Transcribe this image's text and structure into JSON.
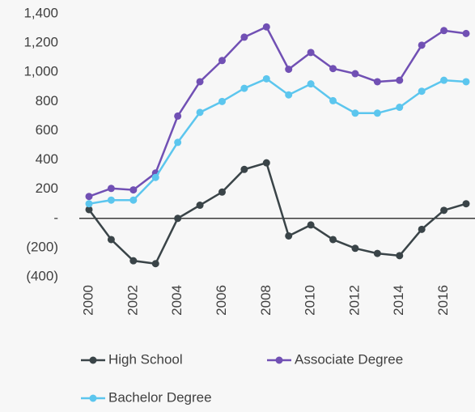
{
  "chart_data": {
    "type": "line",
    "x": [
      2000,
      2001,
      2002,
      2003,
      2004,
      2005,
      2006,
      2007,
      2008,
      2009,
      2010,
      2011,
      2012,
      2013,
      2014,
      2015,
      2016,
      2017
    ],
    "xlim": [
      2000,
      2017
    ],
    "xticks": [
      2000,
      2002,
      2004,
      2006,
      2008,
      2010,
      2012,
      2014,
      2016
    ],
    "ylim": [
      -400,
      1400
    ],
    "yticks": [
      {
        "value": 1400,
        "label": "1,400"
      },
      {
        "value": 1200,
        "label": "1,200"
      },
      {
        "value": 1000,
        "label": "1,000"
      },
      800,
      600,
      400,
      200,
      {
        "value": 0,
        "label": "-"
      },
      {
        "value": -200,
        "label": "(200)"
      },
      {
        "value": -400,
        "label": "(400)"
      }
    ],
    "grid": false,
    "legend": "bottom",
    "series": [
      {
        "name": "High School",
        "color": "#3a4448",
        "values": [
          60,
          -145,
          -290,
          -310,
          0,
          90,
          180,
          335,
          380,
          -120,
          -45,
          -145,
          -205,
          -240,
          -255,
          -75,
          55,
          100
        ]
      },
      {
        "name": "Associate Degree",
        "color": "#7150b4",
        "values": [
          150,
          205,
          195,
          310,
          700,
          935,
          1080,
          1240,
          1310,
          1020,
          1135,
          1025,
          990,
          935,
          945,
          1185,
          1285,
          1265
        ]
      },
      {
        "name": "Bachelor Degree",
        "color": "#5cc6ee",
        "values": [
          100,
          125,
          125,
          280,
          520,
          725,
          800,
          890,
          955,
          845,
          920,
          805,
          720,
          720,
          760,
          870,
          945,
          935
        ]
      }
    ]
  }
}
